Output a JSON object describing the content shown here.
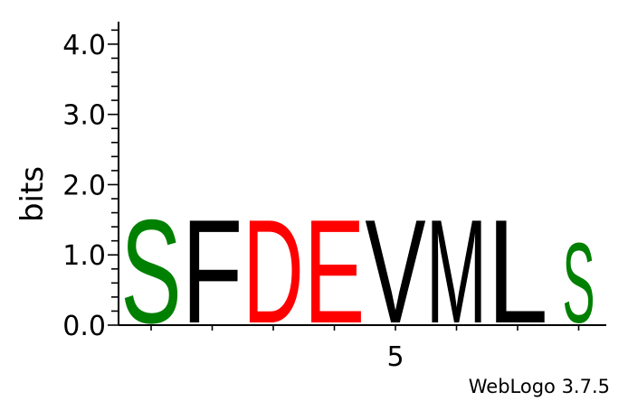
{
  "chart_data": {
    "type": "sequence-logo",
    "title": "",
    "ylabel": "bits",
    "xlabel": "",
    "ylim": [
      0,
      4.32
    ],
    "y_ticks": [
      "0.0",
      "1.0",
      "2.0",
      "3.0",
      "4.0"
    ],
    "x_ticks": [
      {
        "position": 5,
        "label": "5"
      }
    ],
    "positions": [
      {
        "position": 1,
        "letter": "S",
        "bits": 1.65,
        "color": "#008000"
      },
      {
        "position": 2,
        "letter": "F",
        "bits": 1.65,
        "color": "#000000"
      },
      {
        "position": 3,
        "letter": "D",
        "bits": 1.65,
        "color": "#ff0000"
      },
      {
        "position": 4,
        "letter": "E",
        "bits": 1.65,
        "color": "#ff0000"
      },
      {
        "position": 5,
        "letter": "V",
        "bits": 1.65,
        "color": "#000000"
      },
      {
        "position": 6,
        "letter": "M",
        "bits": 1.65,
        "color": "#000000"
      },
      {
        "position": 7,
        "letter": "L",
        "bits": 1.65,
        "color": "#000000"
      },
      {
        "position": 8,
        "letter": "S",
        "bits": 1.28,
        "color": "#008000"
      }
    ]
  },
  "footer": "WebLogo 3.7.5"
}
